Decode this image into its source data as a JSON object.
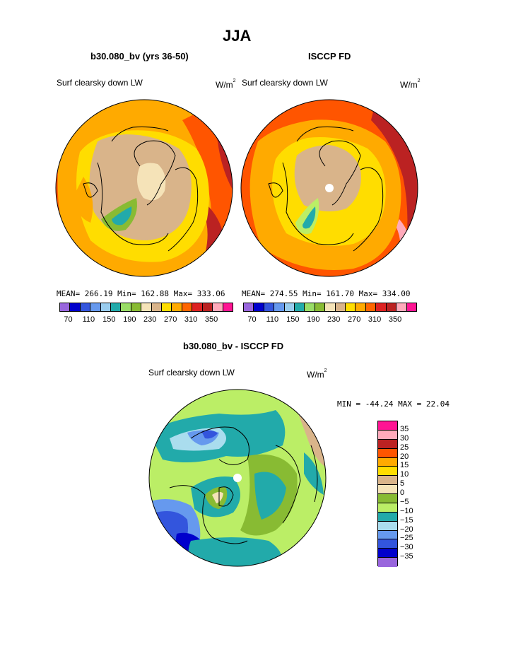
{
  "page": {
    "title": "JJA",
    "left_panel": {
      "title": "b30.080_bv (yrs 36-50)",
      "subtitle": "Surf clearsky down LW",
      "units": "W/m",
      "units_exp": "2",
      "mean_label": "MEAN=",
      "mean": "266.19",
      "min_label": "Min=",
      "min": "162.88",
      "max_label": "Max=",
      "max": "333.06"
    },
    "right_panel": {
      "title": "ISCCP FD",
      "subtitle": "Surf clearsky down LW",
      "units": "W/m",
      "units_exp": "2",
      "mean_label": "MEAN=",
      "mean": "274.55",
      "min_label": "Min=",
      "min": "161.70",
      "max_label": "Max=",
      "max": "334.00"
    },
    "diff_panel": {
      "title": "b30.080_bv - ISCCP FD",
      "subtitle": "Surf clearsky down LW",
      "units": "W/m",
      "units_exp": "2",
      "stats": "MIN = -44.24 MAX =  22.04"
    }
  },
  "colorbar_top": {
    "colors": [
      "#9966dd",
      "#0000cc",
      "#3355dd",
      "#6699ee",
      "#99ccee",
      "#22aaaa",
      "#99dd66",
      "#88bb33",
      "#f5e3b8",
      "#d9b48a",
      "#ffdd00",
      "#ffaa00",
      "#ff6600",
      "#dd2222",
      "#bb2222",
      "#ffaabb",
      "#ff1493"
    ],
    "labels": [
      "70",
      "110",
      "150",
      "190",
      "230",
      "270",
      "310",
      "350"
    ]
  },
  "colorbar_diff": {
    "colors": [
      "#ff1493",
      "#ffaabb",
      "#bb2222",
      "#ff5500",
      "#ffaa00",
      "#ffdd00",
      "#d9b48a",
      "#f5e3b8",
      "#88bb33",
      "#bbee66",
      "#22aaaa",
      "#aaddee",
      "#6699ee",
      "#3355dd",
      "#0000cc",
      "#9966dd"
    ],
    "labels": [
      "35",
      "30",
      "25",
      "20",
      "15",
      "10",
      "5",
      "0",
      "−5",
      "−10",
      "−15",
      "−20",
      "−25",
      "−30",
      "−35"
    ]
  },
  "map_colors": {
    "warm_dark": "#bb2222",
    "red": "#ff5500",
    "orange": "#ffaa00",
    "yellow": "#ffdd00",
    "tan": "#d9b48a",
    "cream": "#f5e3b8",
    "green": "#88bb33",
    "lightgreen": "#bbee66",
    "teal": "#22aaaa",
    "lightblue": "#aaddee",
    "blue": "#6699ee",
    "midblue": "#3355dd",
    "darkblue": "#0000cc"
  }
}
